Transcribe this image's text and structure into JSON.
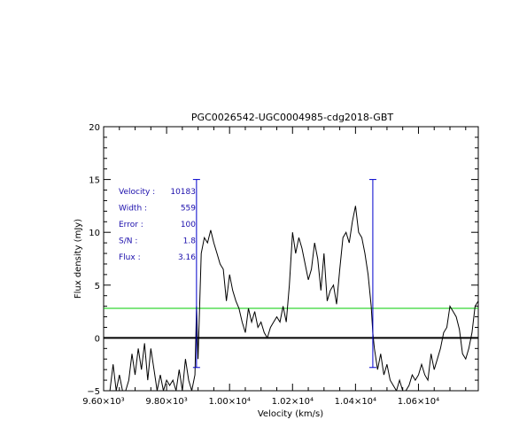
{
  "chart_data": {
    "type": "line",
    "title": "PGC0026542-UGC0004985-cdg2018-GBT",
    "xlabel": "Velocity (km/s)",
    "ylabel": "Flux density (mJy)",
    "xlim": [
      9600,
      10790
    ],
    "ylim": [
      -5,
      20
    ],
    "x_ticks": [
      {
        "value": 9600,
        "label": "9.60×10³"
      },
      {
        "value": 9800,
        "label": "9.80×10³"
      },
      {
        "value": 10000,
        "label": "1.00×10⁴"
      },
      {
        "value": 10200,
        "label": "1.02×10⁴"
      },
      {
        "value": 10400,
        "label": "1.04×10⁴"
      },
      {
        "value": 10600,
        "label": "1.06×10⁴"
      }
    ],
    "y_ticks": [
      {
        "value": -5,
        "label": "−5"
      },
      {
        "value": 0,
        "label": "0"
      },
      {
        "value": 5,
        "label": "5"
      },
      {
        "value": 10,
        "label": "10"
      },
      {
        "value": 15,
        "label": "15"
      },
      {
        "value": 20,
        "label": "20"
      }
    ],
    "series": [
      {
        "color": "#000000",
        "x": [
          9600,
          9620,
          9630,
          9640,
          9650,
          9660,
          9670,
          9680,
          9690,
          9700,
          9710,
          9720,
          9730,
          9740,
          9750,
          9760,
          9770,
          9780,
          9790,
          9800,
          9810,
          9820,
          9830,
          9840,
          9850,
          9860,
          9870,
          9880,
          9890,
          9895,
          9900,
          9905,
          9910,
          9920,
          9930,
          9940,
          9950,
          9960,
          9970,
          9980,
          9990,
          10000,
          10010,
          10020,
          10030,
          10040,
          10050,
          10060,
          10070,
          10080,
          10090,
          10100,
          10110,
          10120,
          10130,
          10140,
          10150,
          10160,
          10170,
          10180,
          10190,
          10200,
          10210,
          10220,
          10230,
          10240,
          10250,
          10260,
          10270,
          10280,
          10290,
          10300,
          10310,
          10320,
          10330,
          10340,
          10350,
          10360,
          10370,
          10380,
          10390,
          10400,
          10410,
          10420,
          10430,
          10440,
          10450,
          10455,
          10460,
          10470,
          10480,
          10490,
          10500,
          10510,
          10520,
          10530,
          10540,
          10550,
          10560,
          10570,
          10580,
          10590,
          10600,
          10610,
          10620,
          10630,
          10640,
          10650,
          10660,
          10670,
          10680,
          10690,
          10700,
          10710,
          10720,
          10730,
          10740,
          10750,
          10760,
          10770,
          10780,
          10790
        ],
        "y": [
          -5.0,
          -5.0,
          -2.5,
          -5.0,
          -3.5,
          -5.0,
          -5.0,
          -4.0,
          -1.5,
          -3.5,
          -1.0,
          -3.0,
          -0.5,
          -4.0,
          -1.0,
          -3.0,
          -5.0,
          -3.5,
          -5.0,
          -4.0,
          -4.5,
          -4.0,
          -5.0,
          -3.0,
          -5.0,
          -2.0,
          -4.0,
          -5.0,
          -3.5,
          3.0,
          -2.0,
          3.0,
          8.0,
          9.5,
          9.0,
          10.2,
          9.0,
          8.0,
          7.0,
          6.5,
          3.5,
          6.0,
          4.5,
          3.5,
          2.8,
          1.5,
          0.5,
          2.8,
          1.5,
          2.5,
          1.0,
          1.5,
          0.5,
          0.0,
          1.0,
          1.5,
          2.0,
          1.5,
          3.0,
          1.5,
          5.0,
          10.0,
          8.0,
          9.5,
          8.5,
          7.0,
          5.5,
          6.5,
          9.0,
          7.5,
          4.5,
          8.0,
          3.5,
          4.5,
          5.0,
          3.2,
          6.5,
          9.5,
          10.0,
          9.0,
          11.0,
          12.5,
          10.0,
          9.5,
          8.0,
          6.0,
          3.0,
          0.5,
          -1.0,
          -3.0,
          -1.5,
          -3.5,
          -2.5,
          -4.0,
          -4.5,
          -5.0,
          -4.0,
          -5.0,
          -5.0,
          -4.5,
          -3.5,
          -4.0,
          -3.5,
          -2.5,
          -3.5,
          -4.0,
          -1.5,
          -3.0,
          -2.0,
          -1.0,
          0.5,
          1.0,
          3.0,
          2.5,
          2.0,
          0.8,
          -1.5,
          -2.0,
          -1.0,
          0.5,
          3.0,
          3.5
        ]
      }
    ],
    "zero_line": {
      "value": 0,
      "color": "#000000"
    },
    "threshold_line": {
      "value": 2.8,
      "color": "#00cc00"
    },
    "window_markers": [
      {
        "x": 9895,
        "y_low": -2.8,
        "y_high": 15.0,
        "color": "#0000cc"
      },
      {
        "x": 10455,
        "y_low": -2.8,
        "y_high": 15.0,
        "color": "#0000cc"
      }
    ],
    "annotations": [
      {
        "label": "Velocity :",
        "value": "10183"
      },
      {
        "label": "Width :",
        "value": "559"
      },
      {
        "label": "Error :",
        "value": "100"
      },
      {
        "label": "S/N :",
        "value": "1.8"
      },
      {
        "label": "Flux :",
        "value": "3.16"
      }
    ]
  }
}
